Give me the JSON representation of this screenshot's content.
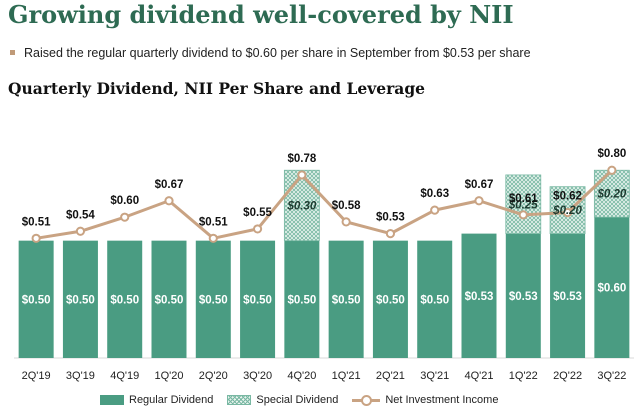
{
  "header": {
    "title": "Growing dividend well-covered by NII",
    "bullet": "Raised the regular quarterly dividend to $0.60 per share in September from $0.53 per share",
    "subtitle": "Quarterly Dividend, NII Per Share and Leverage"
  },
  "colors": {
    "title": "#2e6b53",
    "regular": "#4a9c82",
    "special_fill": "#e9f4ef",
    "special_hatch": "#79b8a3",
    "nii_line": "#c9a383",
    "bullet": "#c09a78"
  },
  "chart_data": {
    "type": "bar",
    "title": "Quarterly Dividend, NII Per Share and Leverage",
    "categories": [
      "2Q'19",
      "3Q'19",
      "4Q'19",
      "1Q'20",
      "2Q'20",
      "3Q'20",
      "4Q'20",
      "1Q'21",
      "2Q'21",
      "3Q'21",
      "4Q'21",
      "1Q'22",
      "2Q'22",
      "3Q'22"
    ],
    "series": [
      {
        "name": "Regular Dividend",
        "kind": "bar",
        "values": [
          0.5,
          0.5,
          0.5,
          0.5,
          0.5,
          0.5,
          0.5,
          0.5,
          0.5,
          0.5,
          0.53,
          0.53,
          0.53,
          0.6
        ],
        "labels": [
          "$0.50",
          "$0.50",
          "$0.50",
          "$0.50",
          "$0.50",
          "$0.50",
          "$0.50",
          "$0.50",
          "$0.50",
          "$0.50",
          "$0.53",
          "$0.53",
          "$0.53",
          "$0.60"
        ]
      },
      {
        "name": "Special Dividend",
        "kind": "stacked-bar",
        "values": [
          null,
          null,
          null,
          null,
          null,
          null,
          0.3,
          null,
          null,
          null,
          null,
          0.25,
          0.2,
          0.2
        ],
        "labels": [
          null,
          null,
          null,
          null,
          null,
          null,
          "$0.30",
          null,
          null,
          null,
          null,
          "$0.25",
          "$0.20",
          "$0.20"
        ]
      },
      {
        "name": "Net Investment Income",
        "kind": "line",
        "values": [
          0.51,
          0.54,
          0.6,
          0.67,
          0.51,
          0.55,
          0.78,
          0.58,
          0.53,
          0.63,
          0.67,
          0.61,
          0.62,
          0.8
        ],
        "labels": [
          "$0.51",
          "$0.54",
          "$0.60",
          "$0.67",
          "$0.51",
          "$0.55",
          "$0.78",
          "$0.58",
          "$0.53",
          "$0.63",
          "$0.67",
          "$0.61",
          "$0.62",
          "$0.80"
        ]
      }
    ],
    "ylim": [
      0,
      0.98
    ],
    "grid": false,
    "legend": "bottom",
    "legend_entries": [
      "Regular Dividend",
      "Special Dividend",
      "Net Investment Income"
    ]
  }
}
